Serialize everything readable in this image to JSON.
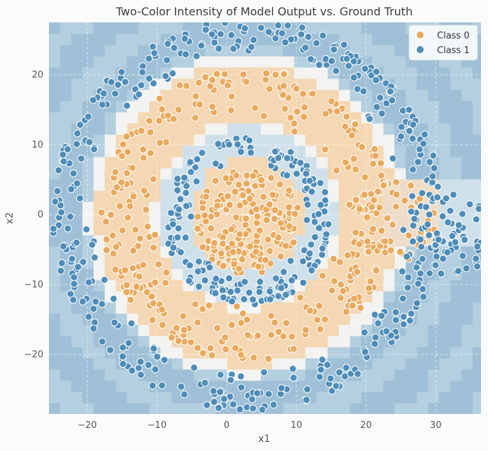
{
  "chart_data": {
    "type": "scatter",
    "title": "Two-Color Intensity of Model Output vs. Ground Truth",
    "xlabel": "x1",
    "ylabel": "x2",
    "xlim": [
      -25.5,
      36.5
    ],
    "ylim": [
      -28.5,
      27.5
    ],
    "xticks": [
      -20,
      -10,
      0,
      10,
      20,
      30
    ],
    "yticks": [
      -20,
      -10,
      0,
      10,
      20
    ],
    "xtick_labels": [
      "−20",
      "−10",
      "0",
      "10",
      "20",
      "30"
    ],
    "ytick_labels": [
      "−20",
      "−10",
      "0",
      "10",
      "20"
    ],
    "grid": true,
    "legend_position": "top-right",
    "background": "two-color model output intensity map (orange = class 0 region, blue = class 1 region)",
    "series": [
      {
        "name": "Class 0",
        "color": "#e8aa5e",
        "shape": "nested spiral bands",
        "regions": [
          {
            "center": [
              3,
              -1
            ],
            "radius_range": [
              0,
              7.5
            ],
            "count": 200
          },
          {
            "center": [
              3,
              0
            ],
            "radius_range": [
              13,
              21
            ],
            "count": 300
          },
          {
            "center": [
              24,
              -1
            ],
            "radius_range": [
              2,
              6
            ],
            "count": 55
          }
        ]
      },
      {
        "name": "Class 1",
        "color": "#4f8db8",
        "shape": "nested spiral bands",
        "regions": [
          {
            "center": [
              3,
              -1
            ],
            "radius_range": [
              8,
              12
            ],
            "count": 190
          },
          {
            "center": [
              3,
              0
            ],
            "radius_range": [
              22,
              28
            ],
            "count": 380
          },
          {
            "center": [
              32,
              -3
            ],
            "radius_range": [
              0,
              6
            ],
            "count": 60
          }
        ]
      }
    ]
  }
}
